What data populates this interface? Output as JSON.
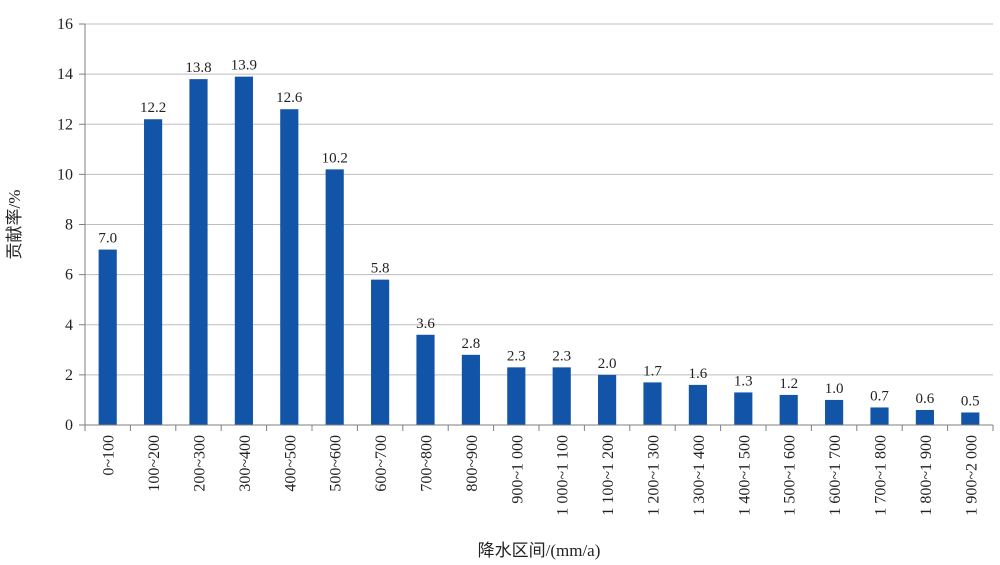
{
  "chart_data": {
    "type": "bar",
    "xlabel": "降水区间/(mm/a)",
    "ylabel": "贡献率/%",
    "ylim": [
      0,
      16
    ],
    "yticks": [
      0,
      2,
      4,
      6,
      8,
      10,
      12,
      14,
      16
    ],
    "grid": true,
    "legend": "none",
    "bar_color": "#1254a8",
    "categories": [
      "0~100",
      "100~200",
      "200~300",
      "300~400",
      "400~500",
      "500~600",
      "600~700",
      "700~800",
      "800~900",
      "900~1 000",
      "1 000~1 100",
      "1 100~1 200",
      "1 200~1 300",
      "1 300~1 400",
      "1 400~1 500",
      "1 500~1 600",
      "1 600~1 700",
      "1 700~1 800",
      "1 800~1 900",
      "1 900~2 000"
    ],
    "values": [
      7.0,
      12.2,
      13.8,
      13.9,
      12.6,
      10.2,
      5.8,
      3.6,
      2.8,
      2.3,
      2.3,
      2.0,
      1.7,
      1.6,
      1.3,
      1.2,
      1.0,
      0.7,
      0.6,
      0.5
    ],
    "data_labels": [
      "7.0",
      "12.2",
      "13.8",
      "13.9",
      "12.6",
      "10.2",
      "5.8",
      "3.6",
      "2.8",
      "2.3",
      "2.3",
      "2.0",
      "1.7",
      "1.6",
      "1.3",
      "1.2",
      "1.0",
      "0.7",
      "0.6",
      "0.5"
    ]
  }
}
